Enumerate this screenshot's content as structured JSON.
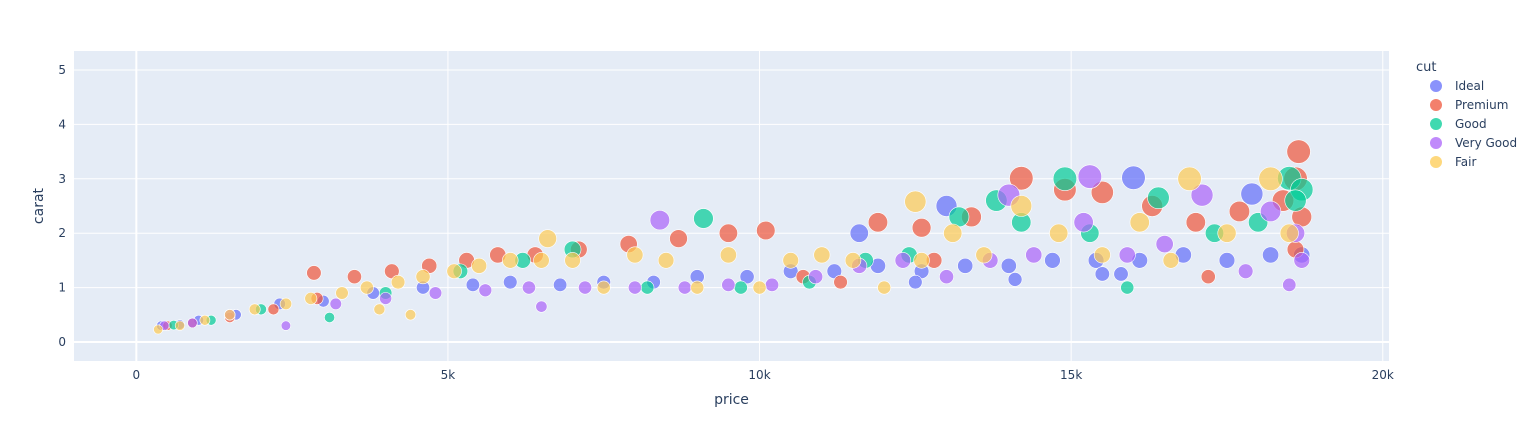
{
  "chart_data": {
    "type": "scatter",
    "title": "",
    "xlabel": "price",
    "ylabel": "carat",
    "xlim": [
      -1000,
      20100
    ],
    "ylim": [
      -0.35,
      5.35
    ],
    "x_ticks": [
      0,
      5000,
      10000,
      15000,
      20000
    ],
    "x_tick_labels": [
      "0",
      "5k",
      "10k",
      "15k",
      "20k"
    ],
    "y_ticks": [
      0,
      1,
      2,
      3,
      4,
      5
    ],
    "y_tick_labels": [
      "0",
      "1",
      "2",
      "3",
      "4",
      "5"
    ],
    "grid": true,
    "plot_background": "#e5ecf6",
    "legend": {
      "title": "cut",
      "placement": "right",
      "entries": [
        "Ideal",
        "Premium",
        "Good",
        "Very Good",
        "Fair"
      ]
    },
    "marker_opacity": 0.7,
    "series": [
      {
        "name": "Ideal",
        "color": "#636efa",
        "points": [
          [
            400,
            0.3
          ],
          [
            700,
            0.32
          ],
          [
            1000,
            0.4
          ],
          [
            1600,
            0.5
          ],
          [
            2300,
            0.7
          ],
          [
            3000,
            0.75
          ],
          [
            3800,
            0.9
          ],
          [
            4600,
            1.0
          ],
          [
            5400,
            1.05
          ],
          [
            6000,
            1.1
          ],
          [
            6800,
            1.05
          ],
          [
            7500,
            1.1
          ],
          [
            8300,
            1.1
          ],
          [
            9000,
            1.2
          ],
          [
            9800,
            1.2
          ],
          [
            10500,
            1.3
          ],
          [
            11200,
            1.3
          ],
          [
            11900,
            1.4
          ],
          [
            12600,
            1.3
          ],
          [
            13300,
            1.4
          ],
          [
            14000,
            1.4
          ],
          [
            14700,
            1.5
          ],
          [
            15400,
            1.5
          ],
          [
            16100,
            1.5
          ],
          [
            16800,
            1.6
          ],
          [
            17500,
            1.5
          ],
          [
            18200,
            1.6
          ],
          [
            18700,
            1.6
          ],
          [
            15500,
            1.25
          ],
          [
            14100,
            1.15
          ],
          [
            12500,
            1.1
          ],
          [
            16000,
            3.02
          ],
          [
            17900,
            2.72
          ],
          [
            13000,
            2.5
          ],
          [
            15800,
            1.25
          ],
          [
            11600,
            2.0
          ]
        ]
      },
      {
        "name": "Premium",
        "color": "#ef553b",
        "points": [
          [
            500,
            0.3
          ],
          [
            900,
            0.35
          ],
          [
            1500,
            0.45
          ],
          [
            2200,
            0.6
          ],
          [
            2900,
            0.8
          ],
          [
            2850,
            1.27
          ],
          [
            3500,
            1.2
          ],
          [
            4100,
            1.3
          ],
          [
            4700,
            1.4
          ],
          [
            5300,
            1.5
          ],
          [
            5800,
            1.6
          ],
          [
            6400,
            1.6
          ],
          [
            7100,
            1.7
          ],
          [
            7900,
            1.8
          ],
          [
            8700,
            1.9
          ],
          [
            9500,
            2.0
          ],
          [
            10100,
            2.05
          ],
          [
            10700,
            1.2
          ],
          [
            11300,
            1.1
          ],
          [
            11900,
            2.2
          ],
          [
            12600,
            2.1
          ],
          [
            13400,
            2.3
          ],
          [
            14200,
            3.01
          ],
          [
            14900,
            2.8
          ],
          [
            15500,
            2.75
          ],
          [
            16300,
            2.5
          ],
          [
            17000,
            2.2
          ],
          [
            17700,
            2.4
          ],
          [
            18400,
            2.6
          ],
          [
            18650,
            3.5
          ],
          [
            18600,
            3.0
          ],
          [
            18700,
            2.3
          ],
          [
            18600,
            1.7
          ],
          [
            12800,
            1.5
          ],
          [
            17200,
            1.2
          ]
        ]
      },
      {
        "name": "Good",
        "color": "#00cc96",
        "points": [
          [
            600,
            0.31
          ],
          [
            1200,
            0.4
          ],
          [
            2000,
            0.6
          ],
          [
            3100,
            0.45
          ],
          [
            4000,
            0.9
          ],
          [
            5200,
            1.3
          ],
          [
            6200,
            1.5
          ],
          [
            7000,
            1.7
          ],
          [
            8200,
            1.0
          ],
          [
            9100,
            2.27
          ],
          [
            9700,
            1.0
          ],
          [
            10800,
            1.1
          ],
          [
            11700,
            1.5
          ],
          [
            12400,
            1.6
          ],
          [
            13200,
            2.3
          ],
          [
            13800,
            2.6
          ],
          [
            14200,
            2.2
          ],
          [
            14900,
            3.0
          ],
          [
            15300,
            2.0
          ],
          [
            15900,
            1.0
          ],
          [
            16400,
            2.65
          ],
          [
            17300,
            2.0
          ],
          [
            18000,
            2.2
          ],
          [
            18500,
            3.01
          ],
          [
            18700,
            2.8
          ],
          [
            18600,
            2.6
          ]
        ]
      },
      {
        "name": "Very Good",
        "color": "#ab63fa",
        "points": [
          [
            450,
            0.3
          ],
          [
            900,
            0.35
          ],
          [
            1500,
            0.5
          ],
          [
            2400,
            0.3
          ],
          [
            3200,
            0.7
          ],
          [
            4000,
            0.8
          ],
          [
            4800,
            0.9
          ],
          [
            5600,
            0.95
          ],
          [
            6300,
            1.0
          ],
          [
            6500,
            0.65
          ],
          [
            7200,
            1.0
          ],
          [
            8000,
            1.0
          ],
          [
            8400,
            2.24
          ],
          [
            8800,
            1.0
          ],
          [
            9500,
            1.05
          ],
          [
            10200,
            1.05
          ],
          [
            10900,
            1.2
          ],
          [
            11600,
            1.4
          ],
          [
            12300,
            1.5
          ],
          [
            13000,
            1.2
          ],
          [
            13700,
            1.5
          ],
          [
            14000,
            2.7
          ],
          [
            14400,
            1.6
          ],
          [
            15200,
            2.2
          ],
          [
            15300,
            3.04
          ],
          [
            15900,
            1.6
          ],
          [
            16500,
            1.8
          ],
          [
            17100,
            2.7
          ],
          [
            17800,
            1.3
          ],
          [
            18200,
            2.4
          ],
          [
            18600,
            2.0
          ],
          [
            18700,
            1.5
          ],
          [
            18500,
            1.05
          ]
        ]
      },
      {
        "name": "Fair",
        "color": "#fecb52",
        "points": [
          [
            350,
            0.23
          ],
          [
            700,
            0.3
          ],
          [
            1100,
            0.4
          ],
          [
            1500,
            0.5
          ],
          [
            1900,
            0.6
          ],
          [
            2400,
            0.7
          ],
          [
            2800,
            0.8
          ],
          [
            3300,
            0.9
          ],
          [
            3700,
            1.0
          ],
          [
            4200,
            1.1
          ],
          [
            4400,
            0.5
          ],
          [
            3900,
            0.6
          ],
          [
            4600,
            1.2
          ],
          [
            5100,
            1.3
          ],
          [
            5500,
            1.4
          ],
          [
            6000,
            1.5
          ],
          [
            6500,
            1.5
          ],
          [
            6600,
            1.9
          ],
          [
            7000,
            1.5
          ],
          [
            7500,
            1.0
          ],
          [
            8000,
            1.6
          ],
          [
            8500,
            1.5
          ],
          [
            9000,
            1.0
          ],
          [
            9500,
            1.6
          ],
          [
            10000,
            1.0
          ],
          [
            10500,
            1.5
          ],
          [
            11000,
            1.6
          ],
          [
            11500,
            1.5
          ],
          [
            12000,
            1.0
          ],
          [
            12500,
            2.58
          ],
          [
            12600,
            1.5
          ],
          [
            13100,
            2.0
          ],
          [
            13600,
            1.6
          ],
          [
            14200,
            2.5
          ],
          [
            14800,
            2.0
          ],
          [
            15500,
            1.6
          ],
          [
            16100,
            2.2
          ],
          [
            16600,
            1.5
          ],
          [
            16900,
            3.0
          ],
          [
            17500,
            2.0
          ],
          [
            18200,
            3.0
          ],
          [
            18500,
            2.0
          ]
        ]
      }
    ]
  }
}
